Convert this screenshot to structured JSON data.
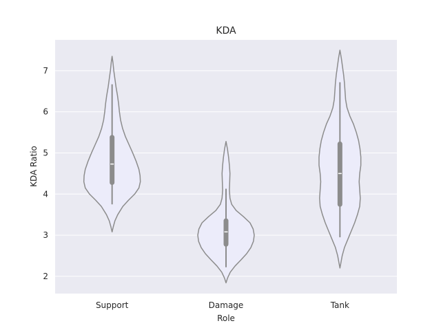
{
  "chart_data": {
    "type": "violin",
    "title": "KDA",
    "xlabel": "Role",
    "ylabel": "KDA Ratio",
    "categories": [
      "Support",
      "Damage",
      "Tank"
    ],
    "yticks": [
      2,
      3,
      4,
      5,
      6,
      7
    ],
    "ylim": [
      1.58,
      7.75
    ],
    "grid": true,
    "colors": {
      "background": "#eaeaf2",
      "grid": "#ffffff",
      "violin_fill": "#ececfa",
      "violin_edge": "#8c8c8c",
      "box": "#8c8c8c",
      "median": "#ffffff"
    },
    "violins": [
      {
        "category": "Support",
        "min_extent": 3.08,
        "max_extent": 7.35,
        "whisker_low": 3.75,
        "whisker_high": 6.67,
        "q1": 4.28,
        "median": 4.73,
        "q3": 5.38,
        "profile": [
          [
            3.08,
            0.0
          ],
          [
            3.2,
            0.04
          ],
          [
            3.35,
            0.1
          ],
          [
            3.5,
            0.2
          ],
          [
            3.7,
            0.38
          ],
          [
            3.85,
            0.58
          ],
          [
            4.0,
            0.8
          ],
          [
            4.15,
            0.95
          ],
          [
            4.3,
            1.0
          ],
          [
            4.45,
            0.99
          ],
          [
            4.6,
            0.95
          ],
          [
            4.8,
            0.85
          ],
          [
            5.0,
            0.73
          ],
          [
            5.2,
            0.6
          ],
          [
            5.4,
            0.47
          ],
          [
            5.6,
            0.37
          ],
          [
            5.8,
            0.3
          ],
          [
            6.0,
            0.26
          ],
          [
            6.2,
            0.23
          ],
          [
            6.4,
            0.19
          ],
          [
            6.6,
            0.14
          ],
          [
            6.8,
            0.1
          ],
          [
            7.0,
            0.06
          ],
          [
            7.2,
            0.03
          ],
          [
            7.35,
            0.0
          ]
        ]
      },
      {
        "category": "Damage",
        "min_extent": 1.84,
        "max_extent": 5.28,
        "whisker_low": 2.22,
        "whisker_high": 4.13,
        "q1": 2.78,
        "median": 3.08,
        "q3": 3.35,
        "profile": [
          [
            1.84,
            0.0
          ],
          [
            1.95,
            0.05
          ],
          [
            2.1,
            0.15
          ],
          [
            2.25,
            0.32
          ],
          [
            2.4,
            0.53
          ],
          [
            2.55,
            0.73
          ],
          [
            2.7,
            0.88
          ],
          [
            2.85,
            0.97
          ],
          [
            3.0,
            1.0
          ],
          [
            3.15,
            0.96
          ],
          [
            3.3,
            0.85
          ],
          [
            3.45,
            0.62
          ],
          [
            3.6,
            0.36
          ],
          [
            3.75,
            0.2
          ],
          [
            3.9,
            0.14
          ],
          [
            4.1,
            0.12
          ],
          [
            4.3,
            0.13
          ],
          [
            4.5,
            0.14
          ],
          [
            4.7,
            0.12
          ],
          [
            4.9,
            0.09
          ],
          [
            5.1,
            0.05
          ],
          [
            5.28,
            0.0
          ]
        ]
      },
      {
        "category": "Tank",
        "min_extent": 2.2,
        "max_extent": 7.5,
        "whisker_low": 2.95,
        "whisker_high": 6.72,
        "q1": 3.75,
        "median": 4.5,
        "q3": 5.22,
        "profile": [
          [
            2.2,
            0.0
          ],
          [
            2.35,
            0.04
          ],
          [
            2.5,
            0.08
          ],
          [
            2.7,
            0.16
          ],
          [
            2.9,
            0.28
          ],
          [
            3.1,
            0.4
          ],
          [
            3.3,
            0.52
          ],
          [
            3.5,
            0.62
          ],
          [
            3.7,
            0.7
          ],
          [
            3.9,
            0.72
          ],
          [
            4.1,
            0.7
          ],
          [
            4.3,
            0.68
          ],
          [
            4.5,
            0.7
          ],
          [
            4.7,
            0.74
          ],
          [
            4.9,
            0.74
          ],
          [
            5.1,
            0.71
          ],
          [
            5.3,
            0.66
          ],
          [
            5.5,
            0.58
          ],
          [
            5.7,
            0.48
          ],
          [
            5.9,
            0.35
          ],
          [
            6.1,
            0.25
          ],
          [
            6.3,
            0.2
          ],
          [
            6.5,
            0.18
          ],
          [
            6.7,
            0.16
          ],
          [
            6.9,
            0.13
          ],
          [
            7.1,
            0.09
          ],
          [
            7.3,
            0.05
          ],
          [
            7.5,
            0.0
          ]
        ]
      }
    ]
  }
}
